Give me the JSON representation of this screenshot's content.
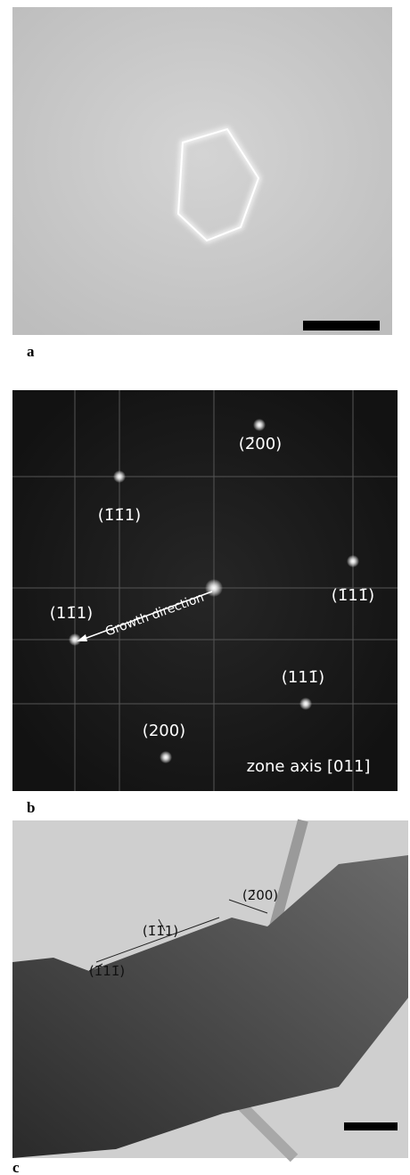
{
  "panels": [
    {
      "label": "a"
    },
    {
      "label": "b",
      "annotations": [
        "(2̄00)",
        "(1̄1̄1)",
        "(1̄11̄)",
        "(11̄1)",
        "Growth direction",
        "(111̄)",
        "(200)",
        "zone axis [011]"
      ]
    },
    {
      "label": "c",
      "annotations": [
        "(2̄00)",
        "(1̄1̄1)",
        "(1̄11̄)"
      ]
    }
  ]
}
